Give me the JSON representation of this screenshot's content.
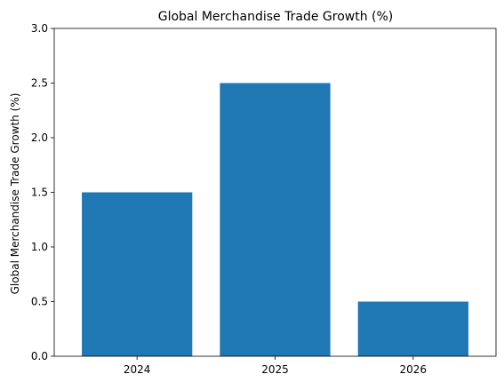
{
  "chart_data": {
    "type": "bar",
    "title": "Global Merchandise Trade Growth (%)",
    "xlabel": "",
    "ylabel": "Global Merchandise Trade Growth (%)",
    "categories": [
      "2024",
      "2025",
      "2026"
    ],
    "values": [
      1.5,
      2.5,
      0.5
    ],
    "ylim": [
      0,
      3.0
    ],
    "yticks": [
      "0.0",
      "0.5",
      "1.0",
      "1.5",
      "2.0",
      "2.5",
      "3.0"
    ],
    "grid": false,
    "bar_color": "#1f77b4"
  }
}
